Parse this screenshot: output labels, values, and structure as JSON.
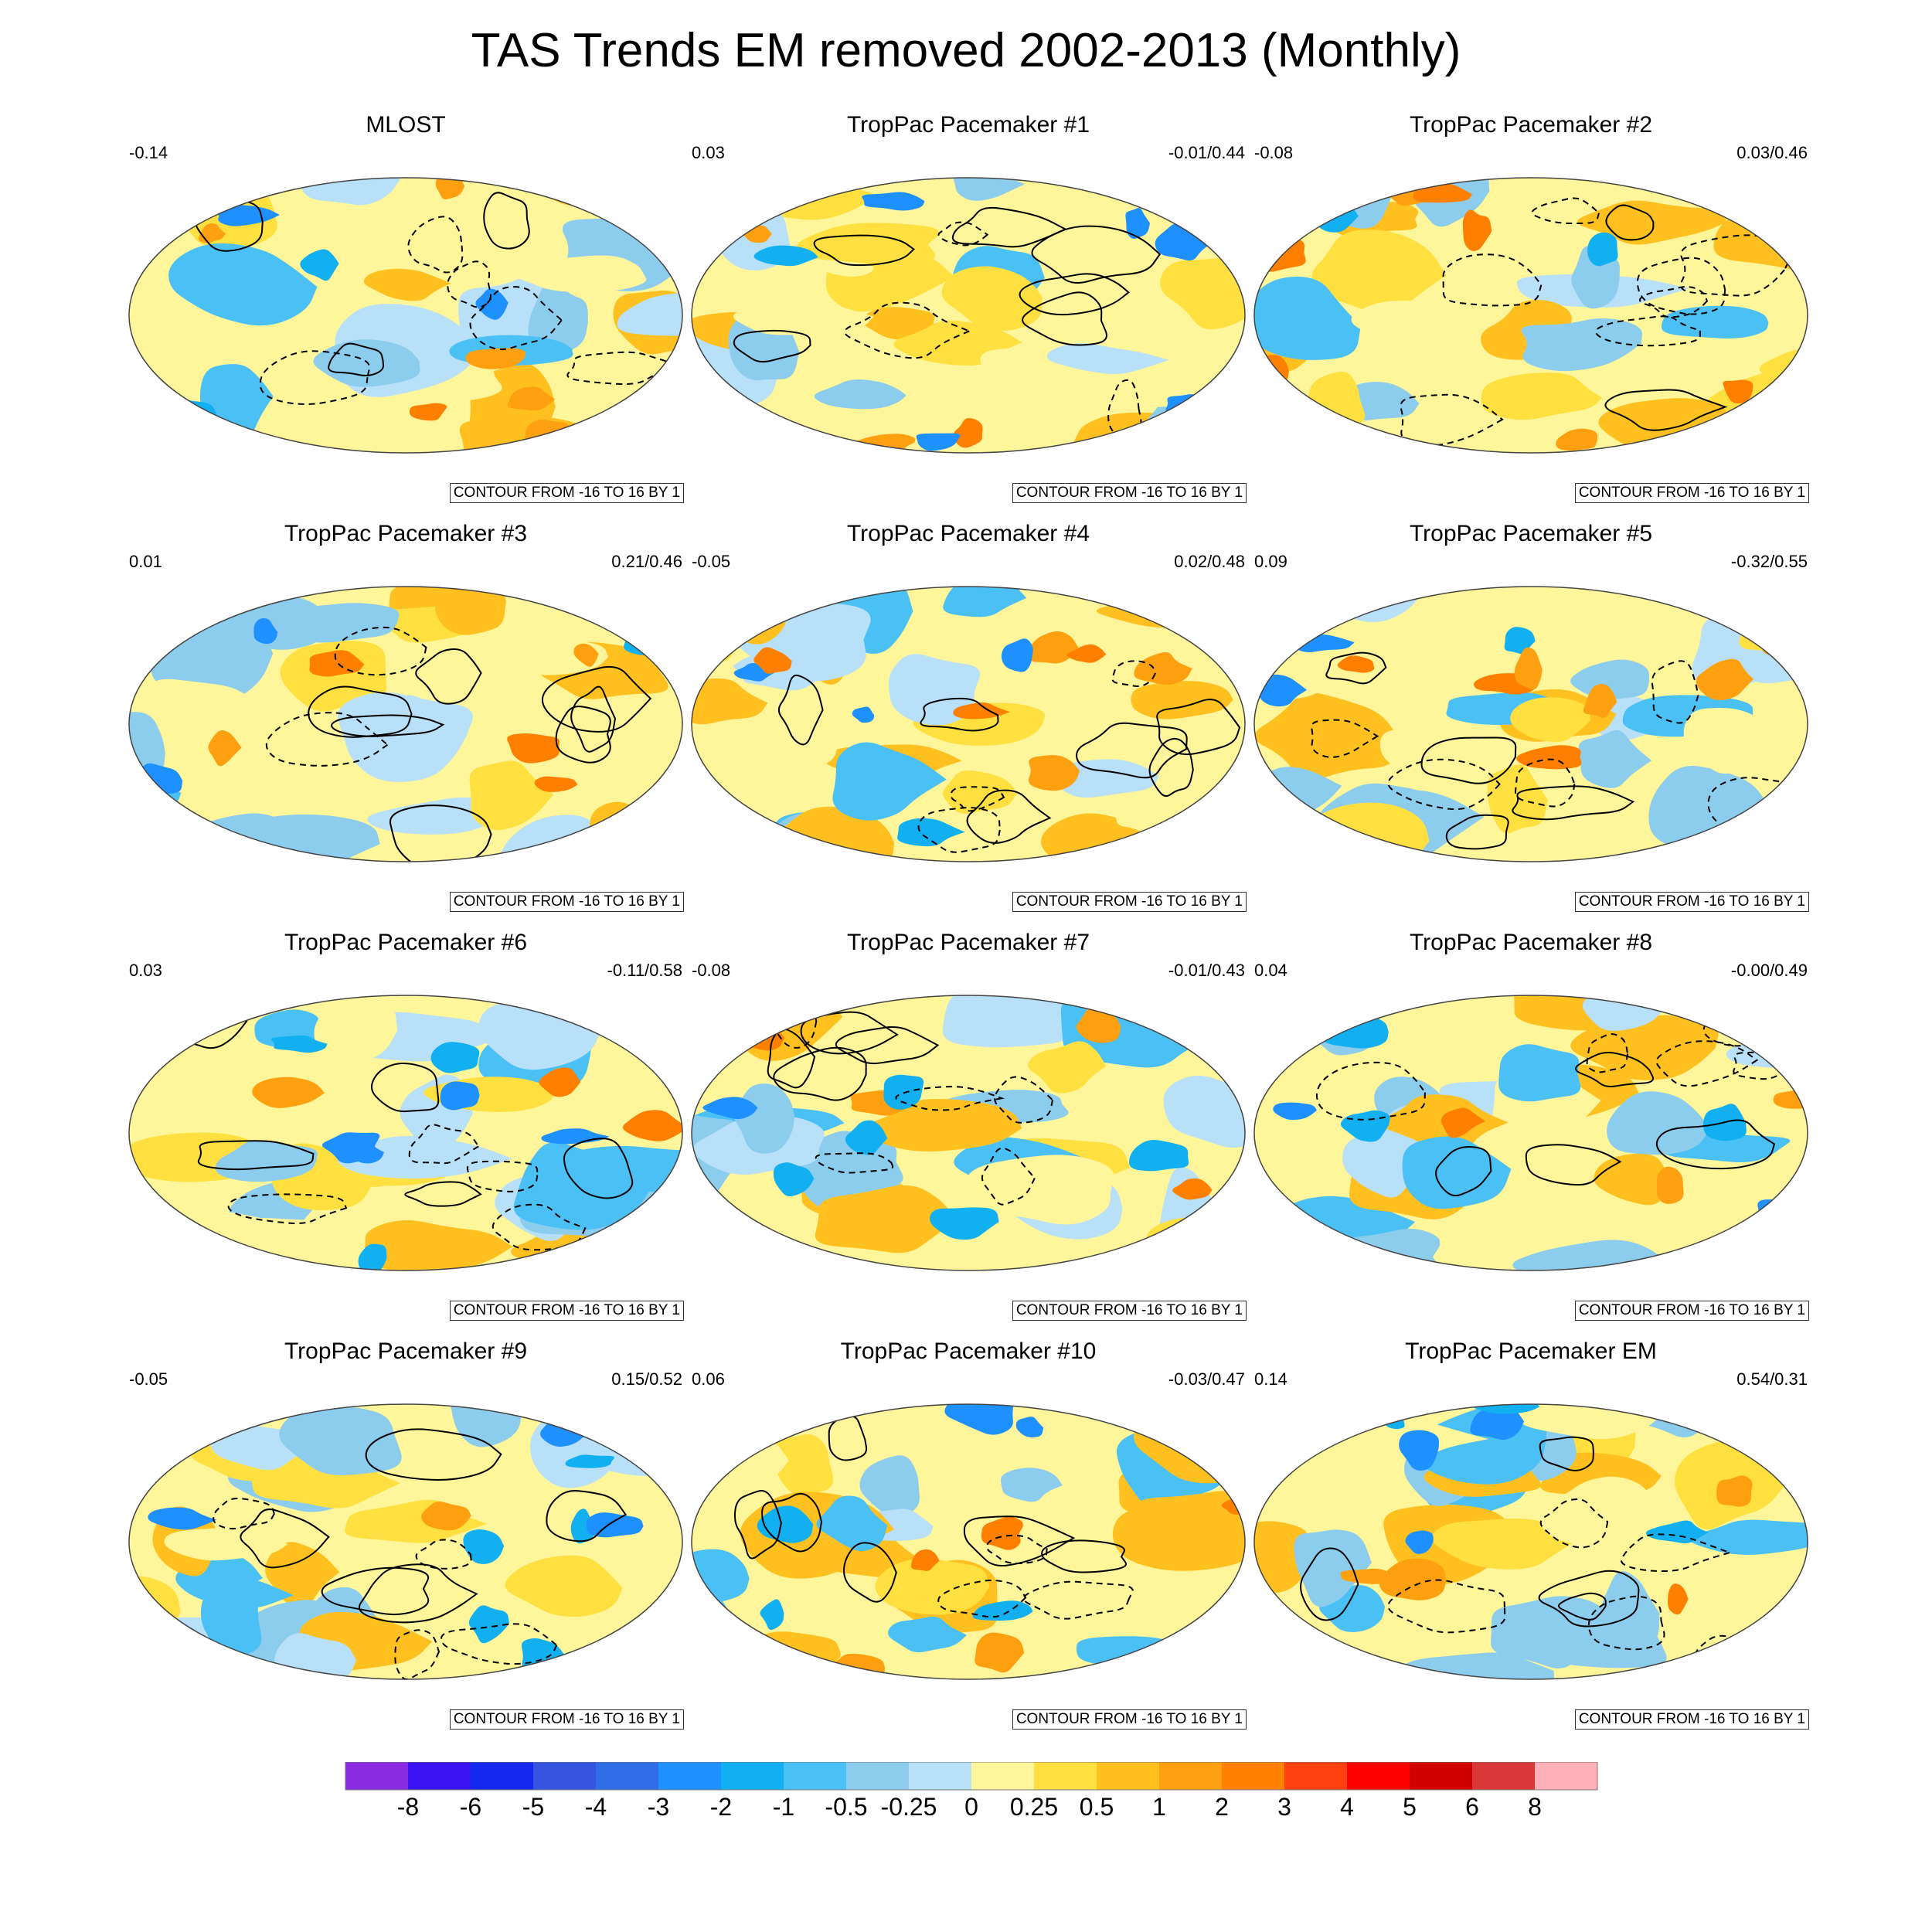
{
  "title": "TAS Trends EM removed 2002-2013 (Monthly)",
  "chart_data": {
    "type": "heatmap",
    "title": "TAS Trends EM removed 2002-2013 (Monthly)",
    "projection": "robinson-global",
    "panels": [
      {
        "title": "MLOST",
        "left_value": "-0.14",
        "right_value": "",
        "contour_info": "CONTOUR FROM -16 TO 16 BY 1"
      },
      {
        "title": "TropPac Pacemaker #1",
        "left_value": "0.03",
        "right_value": "-0.01/0.44",
        "contour_info": "CONTOUR FROM -16 TO 16 BY 1"
      },
      {
        "title": "TropPac Pacemaker #2",
        "left_value": "-0.08",
        "right_value": "0.03/0.46",
        "contour_info": "CONTOUR FROM -16 TO 16 BY 1"
      },
      {
        "title": "TropPac Pacemaker #3",
        "left_value": "0.01",
        "right_value": "0.21/0.46",
        "contour_info": "CONTOUR FROM -16 TO 16 BY 1"
      },
      {
        "title": "TropPac Pacemaker #4",
        "left_value": "-0.05",
        "right_value": "0.02/0.48",
        "contour_info": "CONTOUR FROM -16 TO 16 BY 1"
      },
      {
        "title": "TropPac Pacemaker #5",
        "left_value": "0.09",
        "right_value": "-0.32/0.55",
        "contour_info": "CONTOUR FROM -16 TO 16 BY 1"
      },
      {
        "title": "TropPac Pacemaker #6",
        "left_value": "0.03",
        "right_value": "-0.11/0.58",
        "contour_info": "CONTOUR FROM -16 TO 16 BY 1"
      },
      {
        "title": "TropPac Pacemaker #7",
        "left_value": "-0.08",
        "right_value": "-0.01/0.43",
        "contour_info": "CONTOUR FROM -16 TO 16 BY 1"
      },
      {
        "title": "TropPac Pacemaker #8",
        "left_value": "0.04",
        "right_value": "-0.00/0.49",
        "contour_info": "CONTOUR FROM -16 TO 16 BY 1"
      },
      {
        "title": "TropPac Pacemaker #9",
        "left_value": "-0.05",
        "right_value": "0.15/0.52",
        "contour_info": "CONTOUR FROM -16 TO 16 BY 1"
      },
      {
        "title": "TropPac Pacemaker #10",
        "left_value": "0.06",
        "right_value": "-0.03/0.47",
        "contour_info": "CONTOUR FROM -16 TO 16 BY 1"
      },
      {
        "title": "TropPac Pacemaker EM",
        "left_value": "0.14",
        "right_value": "0.54/0.31",
        "contour_info": "CONTOUR FROM -16 TO 16 BY 1"
      }
    ],
    "colorbar": {
      "labels": [
        "-8",
        "-6",
        "-5",
        "-4",
        "-3",
        "-2",
        "-1",
        "-0.5",
        "-0.25",
        "0",
        "0.25",
        "0.5",
        "1",
        "2",
        "3",
        "4",
        "5",
        "6",
        "8"
      ],
      "colors": [
        "#8a2be2",
        "#3a14f0",
        "#1428f0",
        "#3555e0",
        "#2f6ee6",
        "#1e90ff",
        "#12b0f0",
        "#4ac0f5",
        "#8ccced",
        "#b8e0f8",
        "#fff59a",
        "#ffe040",
        "#ffc020",
        "#ffa010",
        "#ff8000",
        "#ff4010",
        "#ff0000",
        "#d00000",
        "#d83838",
        "#ffb0b8"
      ]
    }
  }
}
